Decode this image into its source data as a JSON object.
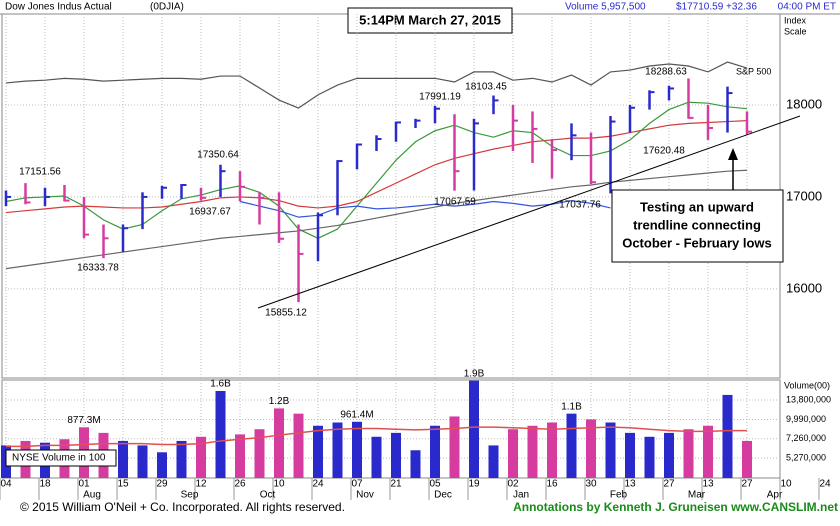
{
  "chart_data": [
    {
      "type": "ohlc",
      "title": "Dow Jones Indus Actual",
      "symbol": "(0DJIA)",
      "timestamp": "5:14PM March 27, 2015",
      "volume": "Volume 5,957,500",
      "quote": "$17710.59 +32.36",
      "time": "04:00 PM ET",
      "scale_label": [
        "Index",
        "Scale"
      ],
      "ylim": [
        15030,
        18990
      ],
      "yticks": [
        16000,
        17000,
        18000
      ],
      "grid": true,
      "up_color": "#2a2acc",
      "down_color": "#d63ca0",
      "high": [
        17070,
        17150,
        17100,
        17130,
        17000,
        16700,
        16700,
        17050,
        17120,
        17140,
        17100,
        17350,
        17280,
        17050,
        17050,
        16700,
        16830,
        17400,
        17580,
        17670,
        17820,
        17850,
        17991,
        17900,
        17850,
        18103,
        18000,
        17930,
        17630,
        17800,
        17700,
        17880,
        18000,
        18160,
        18210,
        18289,
        18000,
        18200,
        17930
      ],
      "low": [
        16900,
        16920,
        16900,
        16950,
        16550,
        16333,
        16400,
        16650,
        16980,
        16980,
        16960,
        17000,
        16950,
        16700,
        16500,
        15855,
        16300,
        16800,
        17300,
        17500,
        17600,
        17750,
        17800,
        17068,
        17070,
        17900,
        17500,
        17370,
        17200,
        17400,
        17140,
        17038,
        17700,
        17950,
        18050,
        17850,
        17620,
        17700,
        17680
      ],
      "close": [
        17000,
        16940,
        17000,
        16960,
        16590,
        16550,
        16660,
        17000,
        17100,
        17130,
        16990,
        17280,
        17110,
        16990,
        16545,
        16380,
        16800,
        17390,
        17570,
        17630,
        17810,
        17830,
        17960,
        17280,
        17800,
        18050,
        17830,
        17740,
        17510,
        17670,
        17160,
        17820,
        17970,
        18140,
        18180,
        17860,
        17750,
        18130,
        17710
      ],
      "lines": [
        {
          "name": "S&P 500",
          "color": "#555555",
          "values": [
            18240,
            18260,
            18270,
            18290,
            18280,
            18260,
            18270,
            18280,
            18290,
            18290,
            18280,
            18315,
            18315,
            18185,
            18054,
            17967,
            18110,
            18217,
            18290,
            18290,
            18290,
            18290,
            18290,
            18250,
            18360,
            18360,
            18270,
            18290,
            18250,
            18326,
            18217,
            18360,
            18380,
            18424,
            18446,
            18424,
            18360,
            18467,
            18402
          ]
        },
        {
          "color": "#d43a3a",
          "values": [
            16830,
            16850,
            16870,
            16890,
            16900,
            16890,
            16880,
            16880,
            16890,
            16920,
            16950,
            16990,
            17000,
            16990,
            16960,
            16900,
            16880,
            16900,
            16950,
            17050,
            17150,
            17250,
            17350,
            17420,
            17470,
            17520,
            17560,
            17600,
            17620,
            17640,
            17640,
            17660,
            17700,
            17740,
            17780,
            17800,
            17810,
            17820,
            17830
          ]
        },
        {
          "color": "#3a9a3a",
          "values": [
            16950,
            16990,
            17000,
            17010,
            16900,
            16750,
            16650,
            16700,
            16850,
            16980,
            17020,
            17080,
            17120,
            17050,
            16900,
            16650,
            16550,
            16650,
            16900,
            17150,
            17400,
            17600,
            17720,
            17780,
            17700,
            17650,
            17720,
            17700,
            17550,
            17450,
            17450,
            17500,
            17620,
            17800,
            17950,
            18030,
            18020,
            17980,
            17960
          ]
        },
        {
          "color": "#666666",
          "values": [
            16220,
            16250,
            16280,
            16310,
            16340,
            16370,
            16400,
            16430,
            16460,
            16490,
            16520,
            16550,
            16570,
            16590,
            16610,
            16630,
            16660,
            16690,
            16730,
            16770,
            16810,
            16850,
            16890,
            16930,
            16960,
            16990,
            17020,
            17050,
            17080,
            17110,
            17130,
            17160,
            17180,
            17200,
            17220,
            17240,
            17260,
            17280,
            17290
          ]
        },
        {
          "color": "#3355dd",
          "values": [
            null,
            null,
            null,
            null,
            null,
            null,
            null,
            null,
            null,
            null,
            null,
            null,
            16950,
            16900,
            16850,
            16780,
            16800,
            16880,
            16900,
            16870,
            16880,
            16900,
            16920,
            16900,
            16920,
            16950,
            16930,
            16900,
            16920,
            16960,
            16930,
            16880,
            null,
            null,
            null,
            null,
            null,
            null,
            null
          ]
        }
      ],
      "annotations": [
        "17151.56",
        "16333.78",
        "17350.64",
        "16937.67",
        "15855.12",
        "17991.19",
        "18103.45",
        "17067.59",
        "17037.76",
        "18288.63",
        "17620.48"
      ],
      "callout": [
        "Testing an upward",
        "trendline connecting",
        "October - February lows"
      ]
    },
    {
      "type": "bar",
      "label": "Volume(00)",
      "legend": "NYSE Volume in 100",
      "log": true,
      "ylim": [
        3790000,
        19200000
      ],
      "yticks": [
        {
          "value": 5270000,
          "label": "5,270,000"
        },
        {
          "value": 7260000,
          "label": "7,260,000"
        },
        {
          "value": 9990000,
          "label": "9,990,000"
        },
        {
          "value": 13800000,
          "label": "13,800,000"
        }
      ],
      "values": [
        6500000,
        7000000,
        6800000,
        7200000,
        8773000,
        8000000,
        7000000,
        6500000,
        5800000,
        7000000,
        7500000,
        16000000,
        7800000,
        8500000,
        12000000,
        11000000,
        9000000,
        9500000,
        9614000,
        7500000,
        8000000,
        6000000,
        9000000,
        10500000,
        19000000,
        6500000,
        8500000,
        9000000,
        9500000,
        11000000,
        10000000,
        9500000,
        8000000,
        7500000,
        8000000,
        8500000,
        9000000,
        15000000,
        7000000
      ],
      "value_labels": [
        null,
        null,
        null,
        null,
        "877.3M",
        null,
        null,
        null,
        null,
        null,
        null,
        "1.6B",
        null,
        null,
        "1.2B",
        null,
        null,
        null,
        "961.4M",
        null,
        null,
        null,
        null,
        null,
        "1.9B",
        null,
        null,
        null,
        null,
        "1.1B",
        null,
        null,
        null,
        null,
        null,
        null,
        null,
        null,
        null
      ],
      "average": {
        "color": "#e05050",
        "values": [
          6400000,
          6400000,
          6500000,
          6500000,
          6600000,
          6700000,
          6700000,
          6700000,
          6600000,
          6600000,
          6700000,
          7000000,
          7200000,
          7400000,
          7700000,
          8000000,
          8300000,
          8500000,
          8600000,
          8600000,
          8500000,
          8400000,
          8500000,
          8600000,
          8800000,
          8800000,
          8700000,
          8600000,
          8500000,
          8600000,
          8700000,
          8800000,
          8700000,
          8500000,
          8300000,
          8200000,
          8200000,
          8300000,
          8300000
        ]
      }
    }
  ],
  "x_axis": {
    "labels": [
      "04",
      "18",
      "01",
      "15",
      "29",
      "12",
      "26",
      "10",
      "24",
      "07",
      "21",
      "05",
      "19",
      "02",
      "16",
      "30",
      "13",
      "27",
      "13",
      "27",
      "10",
      "24"
    ],
    "months": [
      "Aug",
      "Sep",
      "Oct",
      "Nov",
      "Dec",
      "Jan",
      "Feb",
      "Mar",
      "Apr"
    ]
  },
  "footer": {
    "copyright": "© 2015 William O'Neil + Co. Incorporated. All rights reserved.",
    "annotations": "Annotations by Kenneth J. Gruneisen www.CANSLIM.net"
  }
}
